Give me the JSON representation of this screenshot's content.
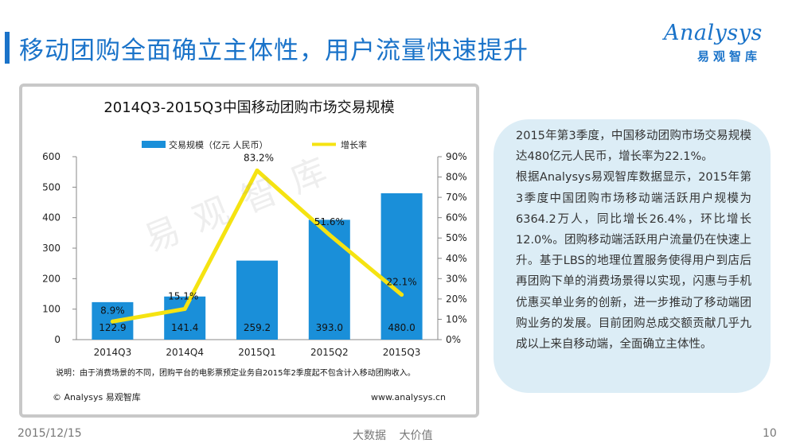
{
  "header": {
    "title": "移动团购全面确立主体性，用户流量快速提升",
    "logo_word": "Analysys",
    "logo_sub": "易观智库"
  },
  "chart_data": {
    "type": "bar",
    "title": "2014Q3-2015Q3中国移动团购市场交易规模",
    "categories": [
      "2014Q3",
      "2014Q4",
      "2015Q1",
      "2015Q2",
      "2015Q3"
    ],
    "series": [
      {
        "name": "交易规模（亿元 人民币）",
        "type": "bar",
        "axis": "left",
        "values": [
          122.9,
          141.4,
          259.2,
          393.0,
          480.0
        ],
        "labels": [
          "122.9",
          "141.4",
          "259.2",
          "393.0",
          "480.0"
        ],
        "color": "#1a8fd9"
      },
      {
        "name": "增长率",
        "type": "line",
        "axis": "right",
        "values": [
          8.9,
          15.1,
          83.2,
          51.6,
          22.1
        ],
        "labels": [
          "8.9%",
          "15.1%",
          "83.2%",
          "51.6%",
          "22.1%"
        ],
        "color": "#f5e311"
      }
    ],
    "ylim": [
      0,
      600
    ],
    "yticks": [
      "0",
      "100",
      "200",
      "300",
      "400",
      "500",
      "600"
    ],
    "y2lim": [
      0,
      90
    ],
    "y2ticks": [
      "0%",
      "10%",
      "20%",
      "30%",
      "40%",
      "50%",
      "60%",
      "70%",
      "80%",
      "90%"
    ],
    "legend_position": "top",
    "grid": false,
    "note": "说明：由于消费场景的不同，团购平台的电影票预定业务自2015年2季度起不包含计入移动团购收入。",
    "source_left": "© Analysys 易观智库",
    "source_right": "www.analysys.cn",
    "watermark": "易观智库"
  },
  "panel": {
    "paragraphs": [
      "2015年第3季度，中国移动团购市场交易规模达480亿元人民币，增长率为22.1%。",
      "根据Analysys易观智库数据显示，2015年第3季度中国团购市场移动端活跃用户规模为6364.2万人，同比增长26.4%，环比增长12.0%。团购移动端活跃用户流量仍在快速上升。基于LBS的地理位置服务使得用户到店后再团购下单的消费场景得以实现，闪惠与手机优惠买单业务的创新，进一步推动了移动端团购业务的发展。目前团购总成交额贡献几乎九成以上来自移动端，全面确立主体性。"
    ]
  },
  "footer": {
    "date": "2015/12/15",
    "slogan": "大数据 大价值",
    "page": "10"
  }
}
